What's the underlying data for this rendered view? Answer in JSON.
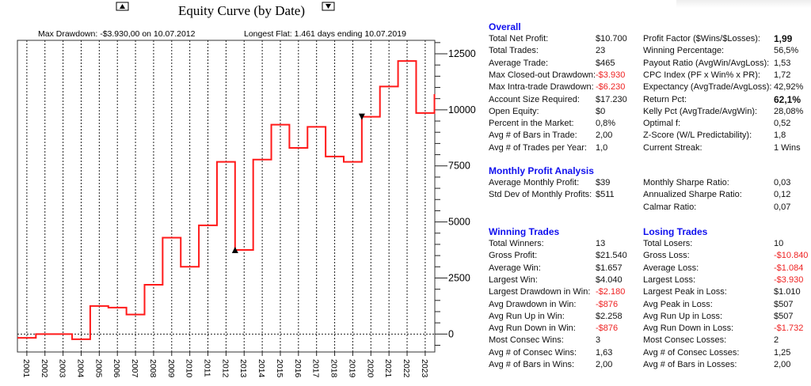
{
  "chart_data": {
    "type": "line",
    "step": true,
    "title": "Equity Curve (by Date)",
    "annotations": {
      "max_drawdown": "Max Drawdown: -$3.930,00 on 10.07.2012",
      "longest_flat": "Longest Flat: 1.461 days ending 10.07.2019"
    },
    "xlim": [
      2000.5,
      2023.55
    ],
    "ylim": [
      -800,
      13100
    ],
    "x_ticks": [
      "2001",
      "2002",
      "2003",
      "2004",
      "2005",
      "2006",
      "2007",
      "2008",
      "2009",
      "2010",
      "2011",
      "2012",
      "2013",
      "2014",
      "2015",
      "2016",
      "2017",
      "2018",
      "2019",
      "2020",
      "2021",
      "2022",
      "2023"
    ],
    "y_ticks": [
      0,
      2500,
      5000,
      7500,
      10000,
      12500
    ],
    "y_tick_labels": [
      "0",
      "2500",
      "5000",
      "7500",
      "10000",
      "12500"
    ],
    "grid": "vertical dashed at years, horizontal dashed at 0",
    "series": [
      {
        "name": "Equity",
        "color": "#ff1a1a",
        "x": [
          2000.5,
          2001.52,
          2002.52,
          2003.52,
          2004.52,
          2005.52,
          2006.52,
          2007.52,
          2008.52,
          2009.52,
          2010.52,
          2011.52,
          2012.52,
          2013.52,
          2014.52,
          2015.52,
          2016.52,
          2017.52,
          2018.52,
          2019.52,
          2020.52,
          2021.52,
          2022.52,
          2023.53
        ],
        "y": [
          -170,
          0,
          0,
          -230,
          1250,
          1180,
          870,
          2200,
          4300,
          3000,
          4850,
          7680,
          3750,
          7780,
          9340,
          8300,
          9240,
          7920,
          7680,
          9690,
          11040,
          12180,
          9860,
          10700
        ]
      }
    ],
    "markers": [
      {
        "name": "max-drawdown-marker",
        "shape": "up-triangle",
        "x": 2012.52,
        "y": 3750
      },
      {
        "name": "longest-flat-marker",
        "shape": "down-triangle",
        "x": 2019.52,
        "y": 9690
      }
    ]
  },
  "stats": {
    "overall": {
      "title": "Overall",
      "left": [
        {
          "label": "Total Net Profit:",
          "value": "$10.700"
        },
        {
          "label": "Total Trades:",
          "value": "23"
        },
        {
          "label": "Average Trade:",
          "value": "$465"
        },
        {
          "label": "Max Closed-out Drawdown:",
          "value": "-$3.930",
          "neg": true
        },
        {
          "label": "Max Intra-trade Drawdown:",
          "value": "-$6.230",
          "neg": true
        },
        {
          "label": "Account Size Required:",
          "value": "$17.230"
        },
        {
          "label": "Open Equity:",
          "value": "$0"
        },
        {
          "label": "Percent in the Market:",
          "value": "0,8%"
        },
        {
          "label": "Avg # of Bars in Trade:",
          "value": "2,00"
        },
        {
          "label": "Avg # of Trades per Year:",
          "value": "1,0"
        }
      ],
      "right": [
        {
          "label": "Profit Factor ($Wins/$Losses):",
          "value": "1,99",
          "bold": true
        },
        {
          "label": "Winning Percentage:",
          "value": "56,5%"
        },
        {
          "label": "Payout Ratio (AvgWin/AvgLoss):",
          "value": "1,53"
        },
        {
          "label": "CPC Index (PF x Win% x PR):",
          "value": "1,72"
        },
        {
          "label": "Expectancy (AvgTrade/AvgLoss):",
          "value": "42,92%"
        },
        {
          "label": "Return Pct:",
          "value": "62,1%",
          "bold": true
        },
        {
          "label": "Kelly Pct (AvgTrade/AvgWin):",
          "value": "28,08%"
        },
        {
          "label": "Optimal f:",
          "value": "0,52"
        },
        {
          "label": "Z-Score (W/L Predictability):",
          "value": "1,8"
        },
        {
          "label": "Current Streak:",
          "value": "1 Wins"
        }
      ]
    },
    "monthly": {
      "title": "Monthly Profit Analysis",
      "left": [
        {
          "label": "Average Monthly Profit:",
          "value": "$39"
        },
        {
          "label": "Std Dev of Monthly Profits:",
          "value": "$511"
        }
      ],
      "right": [
        {
          "label": "Monthly Sharpe Ratio:",
          "value": "0,03"
        },
        {
          "label": "Annualized Sharpe Ratio:",
          "value": "0,12"
        },
        {
          "label": "Calmar Ratio:",
          "value": "0,07"
        }
      ]
    },
    "winning": {
      "title": "Winning Trades",
      "rows": [
        {
          "label": "Total Winners:",
          "value": "13"
        },
        {
          "label": "Gross Profit:",
          "value": "$21.540"
        },
        {
          "label": "Average Win:",
          "value": "$1.657"
        },
        {
          "label": "Largest Win:",
          "value": "$4.040"
        },
        {
          "label": "Largest Drawdown in Win:",
          "value": "-$2.180",
          "neg": true
        },
        {
          "label": "Avg Drawdown in Win:",
          "value": "-$876",
          "neg": true
        },
        {
          "label": "Avg Run Up in Win:",
          "value": "$2.258"
        },
        {
          "label": "Avg Run Down in Win:",
          "value": "-$876",
          "neg": true
        },
        {
          "label": "Most Consec Wins:",
          "value": "3"
        },
        {
          "label": "Avg # of Consec Wins:",
          "value": "1,63"
        },
        {
          "label": "Avg # of Bars in Wins:",
          "value": "2,00"
        }
      ]
    },
    "losing": {
      "title": "Losing Trades",
      "rows": [
        {
          "label": "Total Losers:",
          "value": "10"
        },
        {
          "label": "Gross Loss:",
          "value": "-$10.840",
          "neg": true
        },
        {
          "label": "Average Loss:",
          "value": "-$1.084",
          "neg": true
        },
        {
          "label": "Largest Loss:",
          "value": "-$3.930",
          "neg": true
        },
        {
          "label": "Largest Peak in Loss:",
          "value": "$1.010"
        },
        {
          "label": "Avg Peak in Loss:",
          "value": "$507"
        },
        {
          "label": "Avg Run Up in Loss:",
          "value": "$507"
        },
        {
          "label": "Avg Run Down in Loss:",
          "value": "-$1.732",
          "neg": true
        },
        {
          "label": "Most Consec Losses:",
          "value": "2"
        },
        {
          "label": "Avg # of Consec Losses:",
          "value": "1,25"
        },
        {
          "label": "Avg # of Bars in Losses:",
          "value": "2,00"
        }
      ]
    }
  }
}
